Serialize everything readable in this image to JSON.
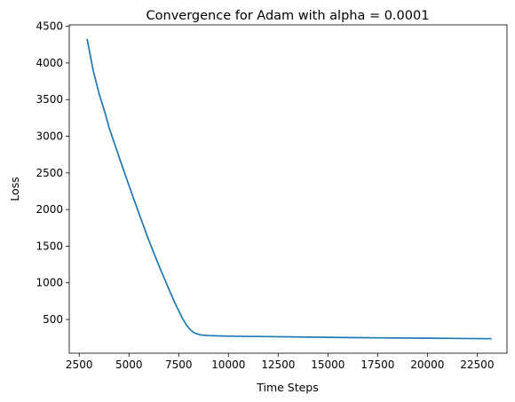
{
  "chart_data": {
    "type": "line",
    "title": "Convergence for Adam with alpha = 0.0001",
    "xlabel": "Time Steps",
    "ylabel": "Loss",
    "xlim": [
      2000,
      24000
    ],
    "ylim": [
      40,
      4520
    ],
    "xticks": [
      2500,
      5000,
      7500,
      10000,
      12500,
      15000,
      17500,
      20000,
      22500
    ],
    "yticks": [
      500,
      1000,
      1500,
      2000,
      2500,
      3000,
      3500,
      4000,
      4500
    ],
    "grid": false,
    "legend": "none",
    "series": [
      {
        "color": "#1f77b4",
        "x": [
          2900,
          3200,
          3500,
          3800,
          4000,
          4300,
          4600,
          5000,
          5500,
          6000,
          6500,
          7000,
          7300,
          7500,
          7700,
          7900,
          8100,
          8300,
          8600,
          9000,
          10000,
          12000,
          15000,
          17500,
          20000,
          23200
        ],
        "y": [
          4320,
          3900,
          3580,
          3320,
          3120,
          2880,
          2640,
          2330,
          1950,
          1580,
          1240,
          920,
          730,
          620,
          510,
          420,
          355,
          315,
          290,
          280,
          273,
          266,
          257,
          250,
          245,
          237
        ]
      }
    ]
  }
}
